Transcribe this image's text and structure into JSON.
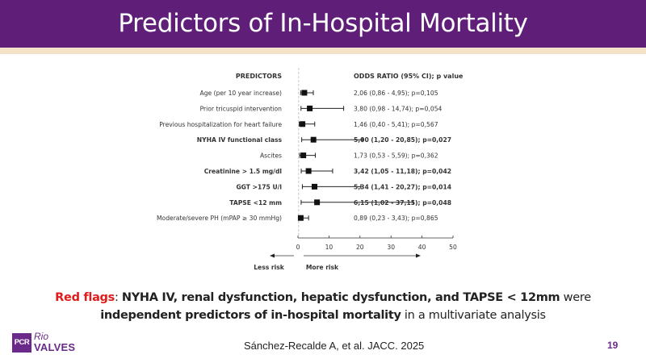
{
  "slide": {
    "title": "Predictors of In-Hospital Mortality",
    "page_number": "19",
    "citation": "Sánchez-Recalde A, et al. JACC. 2025",
    "logo": {
      "box_text": "PCR",
      "line1": "Rio",
      "line2": "VALVES"
    },
    "colors": {
      "header": "#5f1f78",
      "stripe": "#f3e1c8",
      "red_flag": "#e01b1b",
      "brand": "#6a2a8a"
    }
  },
  "summary": {
    "red_label": "Red flags",
    "sep": ": ",
    "bold1": "NYHA IV, renal dysfunction, hepatic dysfunction, and TAPSE < 12mm",
    "normal1": " were ",
    "bold2": "independent predictors of in-hospital mortality",
    "normal2": " in a multivariate analysis"
  },
  "chart_data": {
    "type": "forest",
    "title": "",
    "header_left": "PREDICTORS",
    "header_right": "ODDS RATIO (95% CI); p value",
    "xlim": [
      0,
      50
    ],
    "x_ticks": [
      0,
      10,
      20,
      30,
      40,
      50
    ],
    "reference_line": 1,
    "arrow_left_label": "Less risk",
    "arrow_right_label": "More risk",
    "rows": [
      {
        "label": "Age (per 10 year increase)",
        "or": 2.06,
        "low": 0.86,
        "high": 4.95,
        "p": "0,105",
        "text": "2,06 (0,86 - 4,95); p=0,105",
        "bold": false
      },
      {
        "label": "Prior tricuspid intervention",
        "or": 3.8,
        "low": 0.98,
        "high": 14.74,
        "p": "0,054",
        "text": "3,80 (0,98 - 14,74); p=0,054",
        "bold": false
      },
      {
        "label": "Previous hospitalization for heart failure",
        "or": 1.46,
        "low": 0.4,
        "high": 5.41,
        "p": "0,567",
        "text": "1,46 (0,40 - 5,41); p=0,567",
        "bold": false
      },
      {
        "label": "NYHA IV functional class",
        "or": 5.0,
        "low": 1.2,
        "high": 20.85,
        "p": "0,027",
        "text": "5,00 (1,20 - 20,85); p=0,027",
        "bold": true
      },
      {
        "label": "Ascites",
        "or": 1.73,
        "low": 0.53,
        "high": 5.59,
        "p": "0,362",
        "text": "1,73 (0,53 - 5,59); p=0,362",
        "bold": false
      },
      {
        "label": "Creatinine > 1.5 mg/dl",
        "or": 3.42,
        "low": 1.05,
        "high": 11.18,
        "p": "0,042",
        "text": "3,42 (1,05 - 11,18); p=0,042",
        "bold": true
      },
      {
        "label": "GGT >175 U/l",
        "or": 5.34,
        "low": 1.41,
        "high": 20.27,
        "p": "0,014",
        "text": "5,34 (1,41 - 20,27); p=0,014",
        "bold": true
      },
      {
        "label": "TAPSE <12 mm",
        "or": 6.15,
        "low": 1.02,
        "high": 37.15,
        "p": "0,048",
        "text": "6,15 (1,02 - 37,15); p=0,048",
        "bold": true
      },
      {
        "label": "Moderate/severe PH (mPAP ≥ 30 mmHg)",
        "or": 0.89,
        "low": 0.23,
        "high": 3.43,
        "p": "0,865",
        "text": "0,89 (0,23 - 3,43); p=0,865",
        "bold": false
      }
    ]
  }
}
